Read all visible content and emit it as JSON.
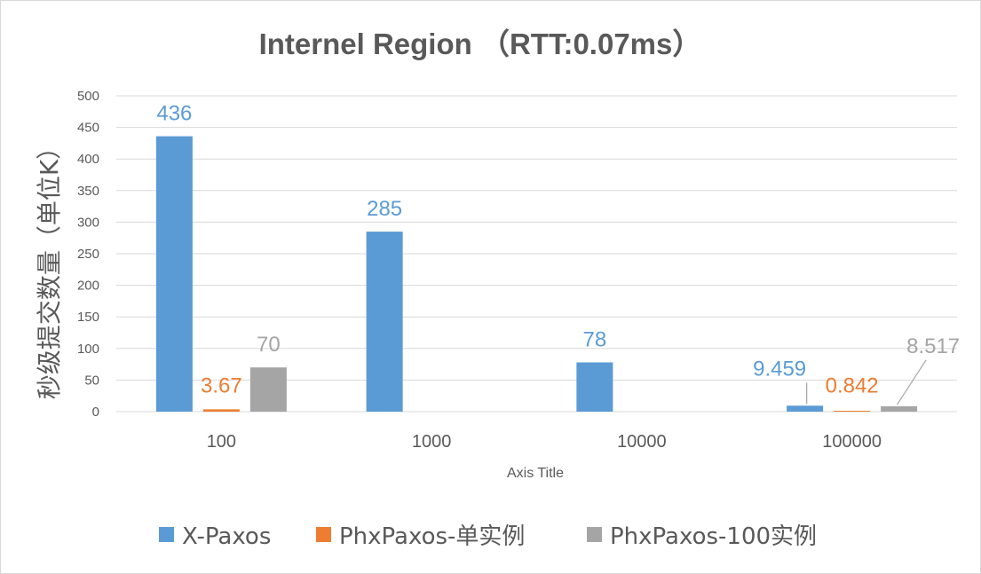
{
  "chart_data": {
    "type": "bar",
    "title": "Internel Region （RTT:0.07ms）",
    "xlabel": "Axis Title",
    "ylabel": "秒级提交数量（单位K）",
    "categories": [
      "100",
      "1000",
      "10000",
      "100000"
    ],
    "ylim": [
      0,
      500
    ],
    "yticks": [
      0,
      50,
      100,
      150,
      200,
      250,
      300,
      350,
      400,
      450,
      500
    ],
    "grid": true,
    "legend_position": "bottom",
    "series": [
      {
        "name": "X-Paxos",
        "color": "#5b9bd5",
        "values": [
          436,
          285,
          78,
          9.459
        ],
        "labels": [
          "436",
          "285",
          "78",
          "9.459"
        ]
      },
      {
        "name": "PhxPaxos-单实例",
        "color": "#ed7d31",
        "values": [
          3.67,
          null,
          null,
          0.842
        ],
        "labels": [
          "3.67",
          null,
          null,
          "0.842"
        ]
      },
      {
        "name": "PhxPaxos-100实例",
        "color": "#a5a5a5",
        "values": [
          70,
          null,
          null,
          8.517
        ],
        "labels": [
          "70",
          null,
          null,
          "8.517"
        ]
      }
    ]
  }
}
